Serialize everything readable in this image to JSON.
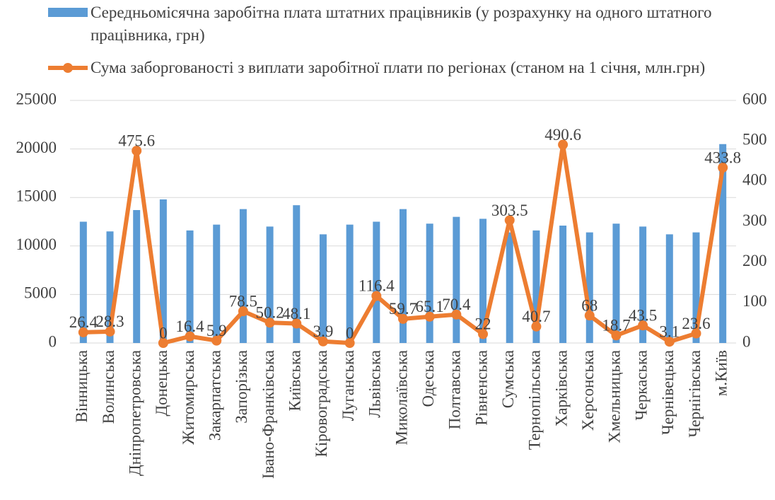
{
  "chart_data": {
    "type": "bar-line",
    "categories": [
      "Вінницька",
      "Волинська",
      "Дніпропетровська",
      "Донецька",
      "Житомирська",
      "Закарпатська",
      "Запорізька",
      "Івано-Франківська",
      "Київська",
      "Кіровоградська",
      "Луганська",
      "Львівська",
      "Миколаївська",
      "Одеська",
      "Полтавська",
      "Рівненська",
      "Сумська",
      "Тернопільська",
      "Харківська",
      "Херсонська",
      "Хмельницька",
      "Черкаська",
      "Чернівецька",
      "Чернігівська",
      "м.Київ"
    ],
    "series": [
      {
        "name": "Середньомісячна заробітна плата штатних працівників (у розрахунку на одного штатного працівника, грн)",
        "type": "bar",
        "color": "#5b9bd5",
        "values": [
          12500,
          11500,
          13700,
          14800,
          11600,
          12200,
          13800,
          12000,
          14200,
          11200,
          12200,
          12500,
          13800,
          12300,
          13000,
          12800,
          11400,
          11600,
          12100,
          11400,
          12300,
          12000,
          11200,
          11400,
          20500
        ]
      },
      {
        "name": "Сума заборгованості з виплати заробітної плати по регіонах (станом на 1 січня, млн.грн)",
        "type": "line",
        "axis": "y2",
        "color": "#ed7d31",
        "values": [
          26.4,
          28.3,
          475.6,
          0,
          16.4,
          5.9,
          78.5,
          50.2,
          48.1,
          3.9,
          0,
          116.4,
          59.7,
          65.1,
          70.4,
          22,
          303.5,
          40.7,
          490.6,
          68,
          18.7,
          43.5,
          3.1,
          23.6,
          433.8
        ]
      }
    ],
    "ylim": [
      0,
      25000
    ],
    "yticks": [
      0,
      5000,
      10000,
      15000,
      20000,
      25000
    ],
    "y2lim": [
      0,
      600
    ],
    "y2ticks": [
      0,
      100,
      200,
      300,
      400,
      500,
      600
    ],
    "grid": true
  }
}
